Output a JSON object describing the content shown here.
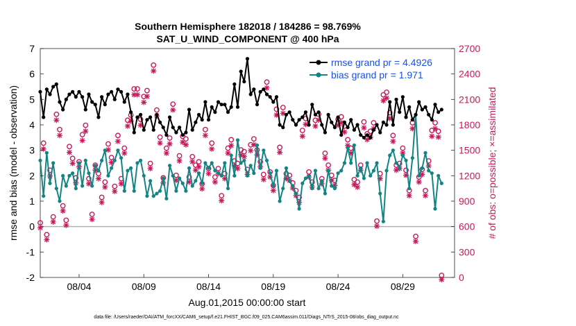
{
  "chart_data": {
    "type": "line",
    "title": "Southern Hemisphere 182018 / 184286 = 98.769%",
    "subtitle": "SAT_U_WIND_COMPONENT @ 400 hPa",
    "xlabel": "Aug.01,2015 00:00:00 start",
    "ylabel": "rmse and bias (model - observation)",
    "y2label": "# of obs: o=possible; ×=assimilated",
    "footer": "data file: /Users/raeder/DAI/ATM_forcXX/CAM6_setup/f.e21.FHIST_BGC.f09_025.CAM6assim.011/Diags_NTrS_2015-08/obs_diag_output.nc",
    "xlim": [
      1,
      33
    ],
    "ylim": [
      -2,
      7
    ],
    "y2lim": [
      0,
      2700
    ],
    "x_ticks": [
      {
        "x": 4,
        "label": "08/04"
      },
      {
        "x": 9,
        "label": "08/09"
      },
      {
        "x": 14,
        "label": "08/14"
      },
      {
        "x": 19,
        "label": "08/19"
      },
      {
        "x": 24,
        "label": "08/24"
      },
      {
        "x": 29,
        "label": "08/29"
      }
    ],
    "y_ticks": [
      "-2",
      "-1",
      "0",
      "1",
      "2",
      "3",
      "4",
      "5",
      "6",
      "7"
    ],
    "y2_ticks": [
      "0",
      "300",
      "600",
      "900",
      "1200",
      "1500",
      "1800",
      "2100",
      "2400",
      "2700"
    ],
    "legend_position": "top-right",
    "colors": {
      "rmse": "#000000",
      "bias": "#138484",
      "obs": "#c8185a",
      "zero": "#b0b0b0",
      "legend_text": "#1a50e6"
    },
    "series": [
      {
        "name": "rmse grand pr = 4.4926",
        "axis": "left",
        "color": "#000000",
        "marker": "star",
        "x": [
          1.0,
          1.25,
          1.5,
          1.75,
          2.0,
          2.25,
          2.5,
          2.75,
          3.0,
          3.25,
          3.5,
          3.75,
          4.0,
          4.25,
          4.5,
          4.75,
          5.0,
          5.25,
          5.5,
          5.75,
          6.0,
          6.25,
          6.5,
          6.75,
          7.0,
          7.25,
          7.5,
          7.75,
          8.0,
          8.25,
          8.5,
          8.75,
          9.0,
          9.25,
          9.5,
          9.75,
          10.0,
          10.25,
          10.5,
          10.75,
          11.0,
          11.25,
          11.5,
          11.75,
          12.0,
          12.25,
          12.5,
          12.75,
          13.0,
          13.25,
          13.5,
          13.75,
          14.0,
          14.25,
          14.5,
          14.75,
          15.0,
          15.25,
          15.5,
          15.75,
          16.0,
          16.25,
          16.5,
          16.75,
          17.0,
          17.25,
          17.5,
          17.75,
          18.0,
          18.25,
          18.5,
          18.75,
          19.0,
          19.25,
          19.5,
          19.75,
          20.0,
          20.25,
          20.5,
          20.75,
          21.0,
          21.25,
          21.5,
          21.75,
          22.0,
          22.25,
          22.5,
          22.75,
          23.0,
          23.25,
          23.5,
          23.75,
          24.0,
          24.25,
          24.5,
          24.75,
          25.0,
          25.25,
          25.5,
          25.75,
          26.0,
          26.25,
          26.5,
          26.75,
          27.0,
          27.25,
          27.5,
          27.75,
          28.0,
          28.25,
          28.5,
          28.75,
          29.0,
          29.25,
          29.5,
          29.75,
          30.0,
          30.25,
          30.5,
          30.75,
          31.0,
          31.25,
          31.5,
          31.75,
          32.0
        ],
        "y": [
          5.3,
          4.3,
          5.4,
          5.2,
          5.5,
          5.6,
          4.9,
          4.6,
          5.0,
          5.2,
          5.3,
          5.1,
          5.3,
          5.1,
          4.6,
          5.2,
          4.9,
          4.8,
          4.3,
          5.1,
          4.8,
          5.2,
          5.3,
          5.0,
          5.4,
          5.3,
          4.9,
          5.2,
          4.5,
          3.7,
          4.3,
          4.4,
          3.8,
          4.2,
          4.3,
          3.8,
          4.4,
          4.1,
          3.9,
          3.6,
          4.3,
          3.9,
          3.7,
          3.9,
          3.6,
          3.7,
          4.6,
          3.8,
          4.1,
          4.4,
          4.2,
          4.9,
          4.2,
          4.7,
          4.5,
          4.9,
          4.8,
          4.8,
          4.5,
          4.7,
          5.6,
          4.7,
          6.1,
          5.7,
          6.6,
          5.2,
          5.4,
          4.8,
          5.3,
          5.4,
          5.2,
          5.1,
          4.9,
          5.1,
          4.0,
          3.9,
          4.4,
          4.5,
          4.2,
          4.0,
          4.2,
          4.3,
          4.5,
          4.0,
          4.8,
          4.4,
          4.5,
          4.0,
          3.7,
          4.4,
          4.1,
          3.9,
          4.3,
          3.6,
          4.1,
          3.9,
          4.2,
          3.8,
          4.0,
          3.6,
          3.5,
          3.6,
          3.5,
          3.8,
          4.0,
          3.7,
          4.1,
          4.0,
          4.9,
          4.0,
          5.0,
          4.5,
          5.1,
          4.3,
          4.7,
          4.2,
          4.4,
          4.9,
          4.6,
          4.7,
          4.4,
          4.2,
          4.8,
          4.5,
          4.6
        ]
      },
      {
        "name": "bias grand pr = 1.971",
        "axis": "left",
        "color": "#138484",
        "marker": "star",
        "x": [
          1.0,
          1.25,
          1.5,
          1.75,
          2.0,
          2.25,
          2.5,
          2.75,
          3.0,
          3.25,
          3.5,
          3.75,
          4.0,
          4.25,
          4.5,
          4.75,
          5.0,
          5.25,
          5.5,
          5.75,
          6.0,
          6.25,
          6.5,
          6.75,
          7.0,
          7.25,
          7.5,
          7.75,
          8.0,
          8.25,
          8.5,
          8.75,
          9.0,
          9.25,
          9.5,
          9.75,
          10.0,
          10.25,
          10.5,
          10.75,
          11.0,
          11.25,
          11.5,
          11.75,
          12.0,
          12.25,
          12.5,
          12.75,
          13.0,
          13.25,
          13.5,
          13.75,
          14.0,
          14.25,
          14.5,
          14.75,
          15.0,
          15.25,
          15.5,
          15.75,
          16.0,
          16.25,
          16.5,
          16.75,
          17.0,
          17.25,
          17.5,
          17.75,
          18.0,
          18.25,
          18.5,
          18.75,
          19.0,
          19.25,
          19.5,
          19.75,
          20.0,
          20.25,
          20.5,
          20.75,
          21.0,
          21.25,
          21.5,
          21.75,
          22.0,
          22.25,
          22.5,
          22.75,
          23.0,
          23.25,
          23.5,
          23.75,
          24.0,
          24.25,
          24.5,
          24.75,
          25.0,
          25.25,
          25.5,
          25.75,
          26.0,
          26.25,
          26.5,
          26.75,
          27.0,
          27.25,
          27.5,
          27.75,
          28.0,
          28.25,
          28.5,
          28.75,
          29.0,
          29.25,
          29.5,
          29.75,
          30.0,
          30.25,
          30.5,
          30.75,
          31.0,
          31.25,
          31.5,
          31.75,
          32.0
        ],
        "y": [
          2.6,
          1.2,
          2.9,
          1.7,
          2.5,
          1.5,
          1.0,
          2.0,
          1.6,
          2.0,
          2.1,
          1.5,
          2.5,
          1.6,
          2.6,
          2.1,
          1.6,
          2.4,
          2.2,
          2.6,
          3.0,
          2.0,
          2.3,
          2.6,
          3.0,
          2.7,
          1.4,
          2.2,
          2.3,
          1.4,
          2.5,
          2.6,
          2.0,
          1.2,
          1.8,
          1.2,
          1.3,
          1.4,
          1.9,
          1.1,
          2.4,
          2.0,
          1.4,
          1.9,
          1.7,
          1.4,
          2.3,
          1.6,
          1.8,
          2.1,
          1.7,
          2.5,
          2.3,
          2.5,
          2.2,
          2.1,
          2.0,
          2.5,
          1.5,
          2.8,
          2.0,
          3.4,
          2.5,
          2.6,
          2.0,
          2.4,
          2.1,
          3.2,
          2.3,
          3.0,
          2.6,
          2.1,
          1.6,
          2.2,
          1.0,
          1.5,
          2.3,
          1.8,
          1.6,
          1.3,
          0.7,
          1.7,
          1.9,
          2.0,
          1.5,
          2.2,
          1.5,
          1.8,
          1.3,
          2.2,
          1.6,
          1.5,
          2.1,
          2.2,
          2.5,
          3.1,
          2.5,
          3.2,
          2.0,
          2.3,
          1.9,
          2.5,
          2.0,
          2.2,
          2.5,
          1.3,
          0.2,
          2.2,
          2.8,
          3.0,
          2.5,
          2.3,
          2.8,
          2.6,
          1.5,
          2.7,
          4.4,
          2.0,
          2.3,
          2.9,
          2.2,
          2.1,
          0.7,
          2.0,
          1.7
        ]
      },
      {
        "name": "obs possible",
        "axis": "right",
        "color": "#c8185a",
        "marker": "o",
        "x": [
          1.0,
          1.25,
          1.5,
          1.75,
          2.0,
          2.25,
          2.5,
          2.75,
          3.0,
          3.25,
          3.5,
          3.75,
          4.0,
          4.25,
          4.5,
          4.75,
          5.0,
          5.25,
          5.5,
          5.75,
          6.0,
          6.25,
          6.5,
          6.75,
          7.0,
          7.25,
          7.5,
          7.75,
          8.0,
          8.25,
          8.5,
          8.75,
          9.0,
          9.25,
          9.5,
          9.75,
          10.0,
          10.25,
          10.5,
          10.75,
          11.0,
          11.25,
          11.5,
          11.75,
          12.0,
          12.25,
          12.5,
          12.75,
          13.0,
          13.25,
          13.5,
          13.75,
          14.0,
          14.25,
          14.5,
          14.75,
          15.0,
          15.25,
          15.5,
          15.75,
          16.0,
          16.25,
          16.5,
          16.75,
          17.0,
          17.25,
          17.5,
          17.75,
          18.0,
          18.25,
          18.5,
          18.75,
          19.0,
          19.25,
          19.5,
          19.75,
          20.0,
          20.25,
          20.5,
          20.75,
          21.0,
          21.25,
          21.5,
          21.75,
          22.0,
          22.25,
          22.5,
          22.75,
          23.0,
          23.25,
          23.5,
          23.75,
          24.0,
          24.25,
          24.5,
          24.75,
          25.0,
          25.25,
          25.5,
          25.75,
          26.0,
          26.25,
          26.5,
          26.75,
          27.0,
          27.25,
          27.5,
          27.75,
          28.0,
          28.25,
          28.5,
          28.75,
          29.0,
          29.25,
          29.5,
          29.75,
          30.0,
          30.25,
          30.5,
          30.75,
          31.0,
          31.25,
          31.5,
          31.75,
          32.0
        ],
        "y": [
          620,
          1560,
          480,
          1240,
          690,
          1900,
          1720,
          820,
          650,
          1520,
          1380,
          1150,
          1340,
          1660,
          1770,
          1140,
          720,
          1300,
          1200,
          920,
          1100,
          1550,
          1390,
          1050,
          1650,
          1140,
          1500,
          1830,
          1890,
          2200,
          2200,
          1840,
          2110,
          2180,
          1320,
          2480,
          1950,
          1630,
          1150,
          1500,
          1620,
          2020,
          1180,
          1410,
          1640,
          1610,
          1160,
          1400,
          1300,
          1340,
          1080,
          1720,
          1260,
          1560,
          1160,
          1260,
          940,
          1200,
          1500,
          1600,
          1350,
          1320,
          1480,
          1460,
          1250,
          1540,
          1610,
          1480,
          1340,
          1190,
          2280,
          1220,
          1060,
          1960,
          1510,
          1980,
          1200,
          1180,
          1090,
          1000,
          920,
          1710,
          1850,
          1220,
          1100,
          1830,
          1900,
          1140,
          1440,
          1300,
          1180,
          1120,
          1840,
          1870,
          1760,
          1600,
          1500,
          1130,
          1100,
          1300,
          1810,
          1670,
          1700,
          1800,
          640,
          1200,
          2130,
          2160,
          1920,
          1650,
          1300,
          1320,
          1500,
          1240,
          1000,
          1800,
          460,
          1160,
          1250,
          1000,
          1350,
          1710,
          1800,
          1700,
          0
        ]
      },
      {
        "name": "obs assimilated",
        "axis": "right",
        "color": "#c8185a",
        "marker": "x",
        "x": [
          1.0,
          1.25,
          1.5,
          1.75,
          2.0,
          2.25,
          2.5,
          2.75,
          3.0,
          3.25,
          3.5,
          3.75,
          4.0,
          4.25,
          4.5,
          4.75,
          5.0,
          5.25,
          5.5,
          5.75,
          6.0,
          6.25,
          6.5,
          6.75,
          7.0,
          7.25,
          7.5,
          7.75,
          8.0,
          8.25,
          8.5,
          8.75,
          9.0,
          9.25,
          9.5,
          9.75,
          10.0,
          10.25,
          10.5,
          10.75,
          11.0,
          11.25,
          11.5,
          11.75,
          12.0,
          12.25,
          12.5,
          12.75,
          13.0,
          13.25,
          13.5,
          13.75,
          14.0,
          14.25,
          14.5,
          14.75,
          15.0,
          15.25,
          15.5,
          15.75,
          16.0,
          16.25,
          16.5,
          16.75,
          17.0,
          17.25,
          17.5,
          17.75,
          18.0,
          18.25,
          18.5,
          18.75,
          19.0,
          19.25,
          19.5,
          19.75,
          20.0,
          20.25,
          20.5,
          20.75,
          21.0,
          21.25,
          21.5,
          21.75,
          22.0,
          22.25,
          22.5,
          22.75,
          23.0,
          23.25,
          23.5,
          23.75,
          24.0,
          24.25,
          24.5,
          24.75,
          25.0,
          25.25,
          25.5,
          25.75,
          26.0,
          26.25,
          26.5,
          26.75,
          27.0,
          27.25,
          27.5,
          27.75,
          28.0,
          28.25,
          28.5,
          28.75,
          29.0,
          29.25,
          29.5,
          29.75,
          30.0,
          30.25,
          30.5,
          30.75,
          31.0,
          31.25,
          31.5,
          31.75,
          32.0
        ],
        "y": [
          610,
          1540,
          470,
          1220,
          680,
          1880,
          1700,
          810,
          640,
          1500,
          1370,
          1140,
          1330,
          1640,
          1750,
          1130,
          710,
          1290,
          1190,
          910,
          1090,
          1530,
          1380,
          1040,
          1630,
          1130,
          1490,
          1810,
          1870,
          2180,
          2180,
          1820,
          2090,
          2160,
          1310,
          2460,
          1930,
          1610,
          1140,
          1490,
          1600,
          2000,
          1170,
          1400,
          1620,
          1590,
          1150,
          1390,
          1290,
          1330,
          1070,
          1700,
          1250,
          1540,
          1150,
          1250,
          930,
          1190,
          1490,
          1580,
          1340,
          1310,
          1470,
          1450,
          1240,
          1520,
          1590,
          1470,
          1330,
          1180,
          2260,
          1210,
          1050,
          1940,
          1500,
          1960,
          1190,
          1170,
          1080,
          990,
          910,
          1690,
          1830,
          1210,
          1090,
          1810,
          1880,
          1130,
          1430,
          1290,
          1170,
          1110,
          1820,
          1850,
          1740,
          1580,
          1490,
          1120,
          1090,
          1290,
          1790,
          1650,
          1680,
          1780,
          630,
          1190,
          2110,
          2140,
          1900,
          1630,
          1290,
          1310,
          1490,
          1230,
          990,
          1780,
          450,
          1150,
          1240,
          990,
          1340,
          1690,
          1780,
          1680,
          0
        ]
      }
    ]
  }
}
